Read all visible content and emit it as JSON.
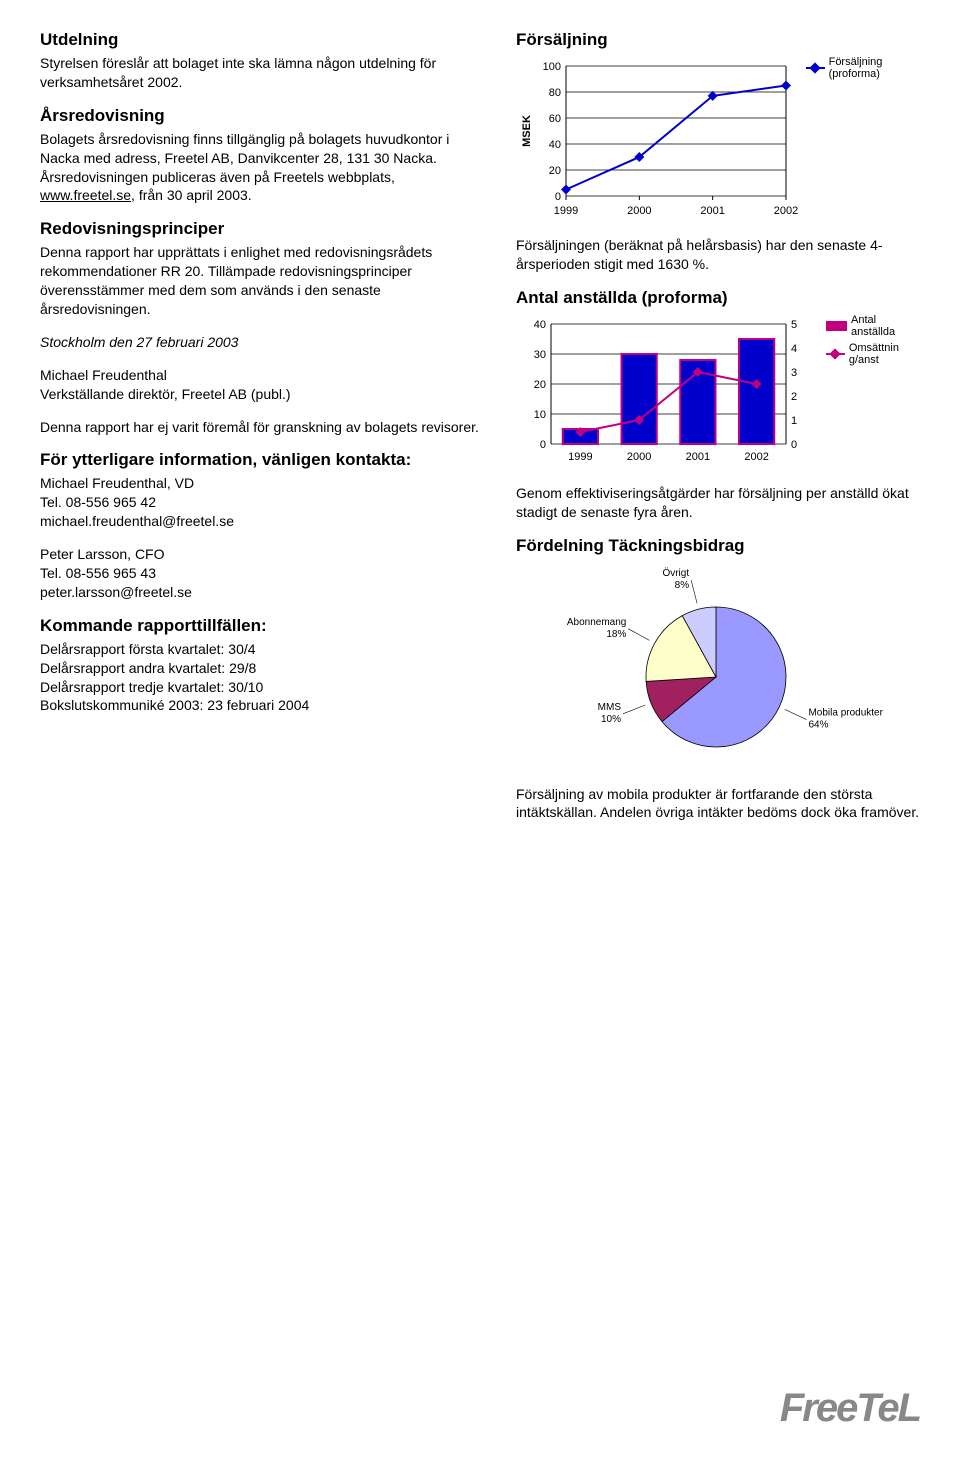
{
  "left": {
    "utdelning_h": "Utdelning",
    "utdelning_p": "Styrelsen föreslår att bolaget inte ska lämna någon utdelning för verksamhetsåret 2002.",
    "arsred_h": "Årsredovisning",
    "arsred_p1": "Bolagets årsredovisning finns tillgänglig på bolagets huvudkontor i Nacka med adress, Freetel AB, Danvikcenter 28, 131 30 Nacka. Årsredovisningen publiceras även på Freetels webbplats, ",
    "arsred_link": "www.freetel.se",
    "arsred_p1b": ", från 30 april 2003.",
    "red_h": "Redovisningsprinciper",
    "red_p": "Denna rapport har upprättats i enlighet med redovisningsrådets rekommendationer RR 20. Tillämpade redovisningsprinciper överensstämmer med dem som används i den senaste årsredovisningen.",
    "stockholm": "Stockholm den 27 februari 2003",
    "mf_name": "Michael Freudenthal",
    "mf_title": "Verkställande direktör, Freetel AB (publ.)",
    "ej_gransk": "Denna rapport har ej varit föremål för granskning av bolagets revisorer.",
    "info_h": "För ytterligare information, vänligen kontakta:",
    "c1_name": "Michael Freudenthal, VD",
    "c1_tel": "Tel. 08-556 965 42",
    "c1_mail": "michael.freudenthal@freetel.se",
    "c2_name": "Peter Larsson, CFO",
    "c2_tel": "Tel. 08-556 965 43",
    "c2_mail": "peter.larsson@freetel.se",
    "komm_h": "Kommande rapporttillfällen:",
    "k1": "Delårsrapport första kvartalet: 30/4",
    "k2": "Delårsrapport andra kvartalet: 29/8",
    "k3": "Delårsrapport tredje kvartalet: 30/10",
    "k4": "Bokslutskommuniké 2003: 23 februari 2004"
  },
  "right": {
    "fs_h": "Försäljning",
    "fs_chart": {
      "type": "line",
      "years": [
        "1999",
        "2000",
        "2001",
        "2002"
      ],
      "values": [
        5,
        30,
        77,
        85
      ],
      "ylim": [
        0,
        100
      ],
      "ytick_step": 20,
      "ylabel": "MSEK",
      "line_color": "#0000cc",
      "marker_color": "#0000cc",
      "grid_color": "#000000",
      "bg": "#ffffff",
      "legend_label": "Försäljning (proforma)",
      "tick_fontsize": 11
    },
    "fs_caption": "Försäljningen (beräknat på helårsbasis) har den senaste 4-årsperioden stigit med 1630 %.",
    "aa_h": "Antal anställda (proforma)",
    "aa_chart": {
      "type": "combo-bar-line",
      "years": [
        "1999",
        "2000",
        "2001",
        "2002"
      ],
      "bar_values": [
        5,
        30,
        28,
        35
      ],
      "line_values": [
        0.5,
        1.0,
        3.0,
        2.5
      ],
      "y1_lim": [
        0,
        40
      ],
      "y1_step": 10,
      "y2_lim": [
        0,
        5
      ],
      "y2_step": 1,
      "bar_color": "#0000cc",
      "bar_border": "#c00080",
      "line_color": "#c00080",
      "bg": "#ffffff",
      "legend_bar": "Antal anställda",
      "legend_line": "Omsättnin g/anst",
      "tick_fontsize": 11
    },
    "aa_caption": "Genom effektiviseringsåtgärder har försäljning per anställd ökat stadigt de senaste fyra åren.",
    "ft_h": "Fördelning Täckningsbidrag",
    "pie": {
      "type": "pie",
      "slices": [
        {
          "label": "Mobila produkter",
          "pct": 64,
          "color": "#9999ff"
        },
        {
          "label": "MMS",
          "pct": 10,
          "color": "#a02060"
        },
        {
          "label": "Abonnemang",
          "pct": 18,
          "color": "#ffffcc"
        },
        {
          "label": "Övrigt",
          "pct": 8,
          "color": "#ccccff"
        }
      ],
      "label_fontsize": 10
    },
    "ft_caption": "Försäljning av mobila produkter är fortfarande den största intäktskällan. Andelen övriga intäkter bedöms dock öka framöver."
  },
  "logo_text": "FreeTeL"
}
